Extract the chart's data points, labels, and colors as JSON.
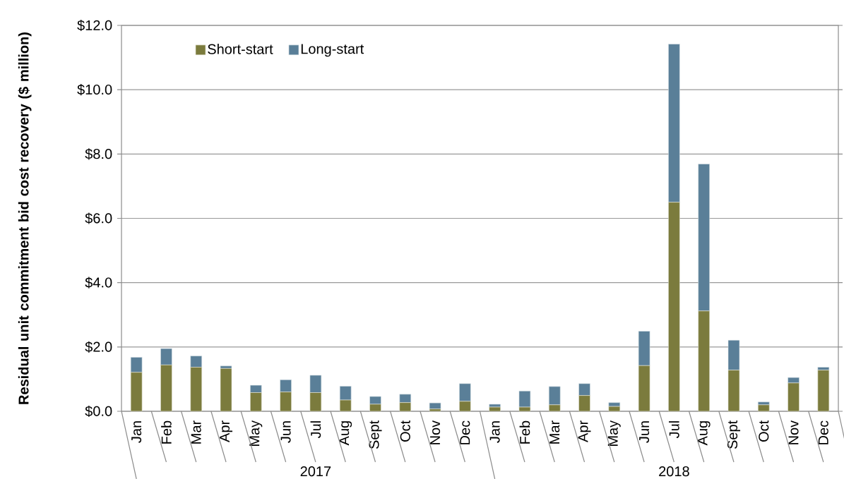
{
  "chart_data": {
    "type": "bar",
    "stacked": true,
    "ylabel": "Residual unit commitment bid cost recovery ($ million)",
    "categories": [
      "Jan",
      "Feb",
      "Mar",
      "Apr",
      "May",
      "Jun",
      "Jul",
      "Aug",
      "Sept",
      "Oct",
      "Nov",
      "Dec",
      "Jan",
      "Feb",
      "Mar",
      "Apr",
      "May",
      "Jun",
      "Jul",
      "Aug",
      "Sept",
      "Oct",
      "Nov",
      "Dec"
    ],
    "series": [
      {
        "name": "Short-start",
        "color": "#7b7b3d",
        "values": [
          1.21,
          1.44,
          1.37,
          1.33,
          0.58,
          0.6,
          0.58,
          0.35,
          0.22,
          0.27,
          0.07,
          0.31,
          0.13,
          0.13,
          0.2,
          0.49,
          0.15,
          1.42,
          6.5,
          3.12,
          1.28,
          0.2,
          0.88,
          1.28
        ]
      },
      {
        "name": "Long-start",
        "color": "#5a7f98",
        "values": [
          0.47,
          0.51,
          0.35,
          0.08,
          0.23,
          0.38,
          0.54,
          0.43,
          0.24,
          0.26,
          0.19,
          0.55,
          0.09,
          0.5,
          0.57,
          0.37,
          0.12,
          1.07,
          4.92,
          4.57,
          0.93,
          0.09,
          0.17,
          0.09
        ]
      }
    ],
    "ylim": [
      0,
      12
    ],
    "yticks": [
      {
        "value": 0,
        "label": "$0.0"
      },
      {
        "value": 2,
        "label": "$2.0"
      },
      {
        "value": 4,
        "label": "$4.0"
      },
      {
        "value": 6,
        "label": "$6.0"
      },
      {
        "value": 8,
        "label": "$8.0"
      },
      {
        "value": 10,
        "label": "$10.0"
      },
      {
        "value": 12,
        "label": "$12.0"
      }
    ],
    "grid": "y",
    "legend": "top left",
    "annotations": [
      "2017",
      "2018"
    ]
  }
}
